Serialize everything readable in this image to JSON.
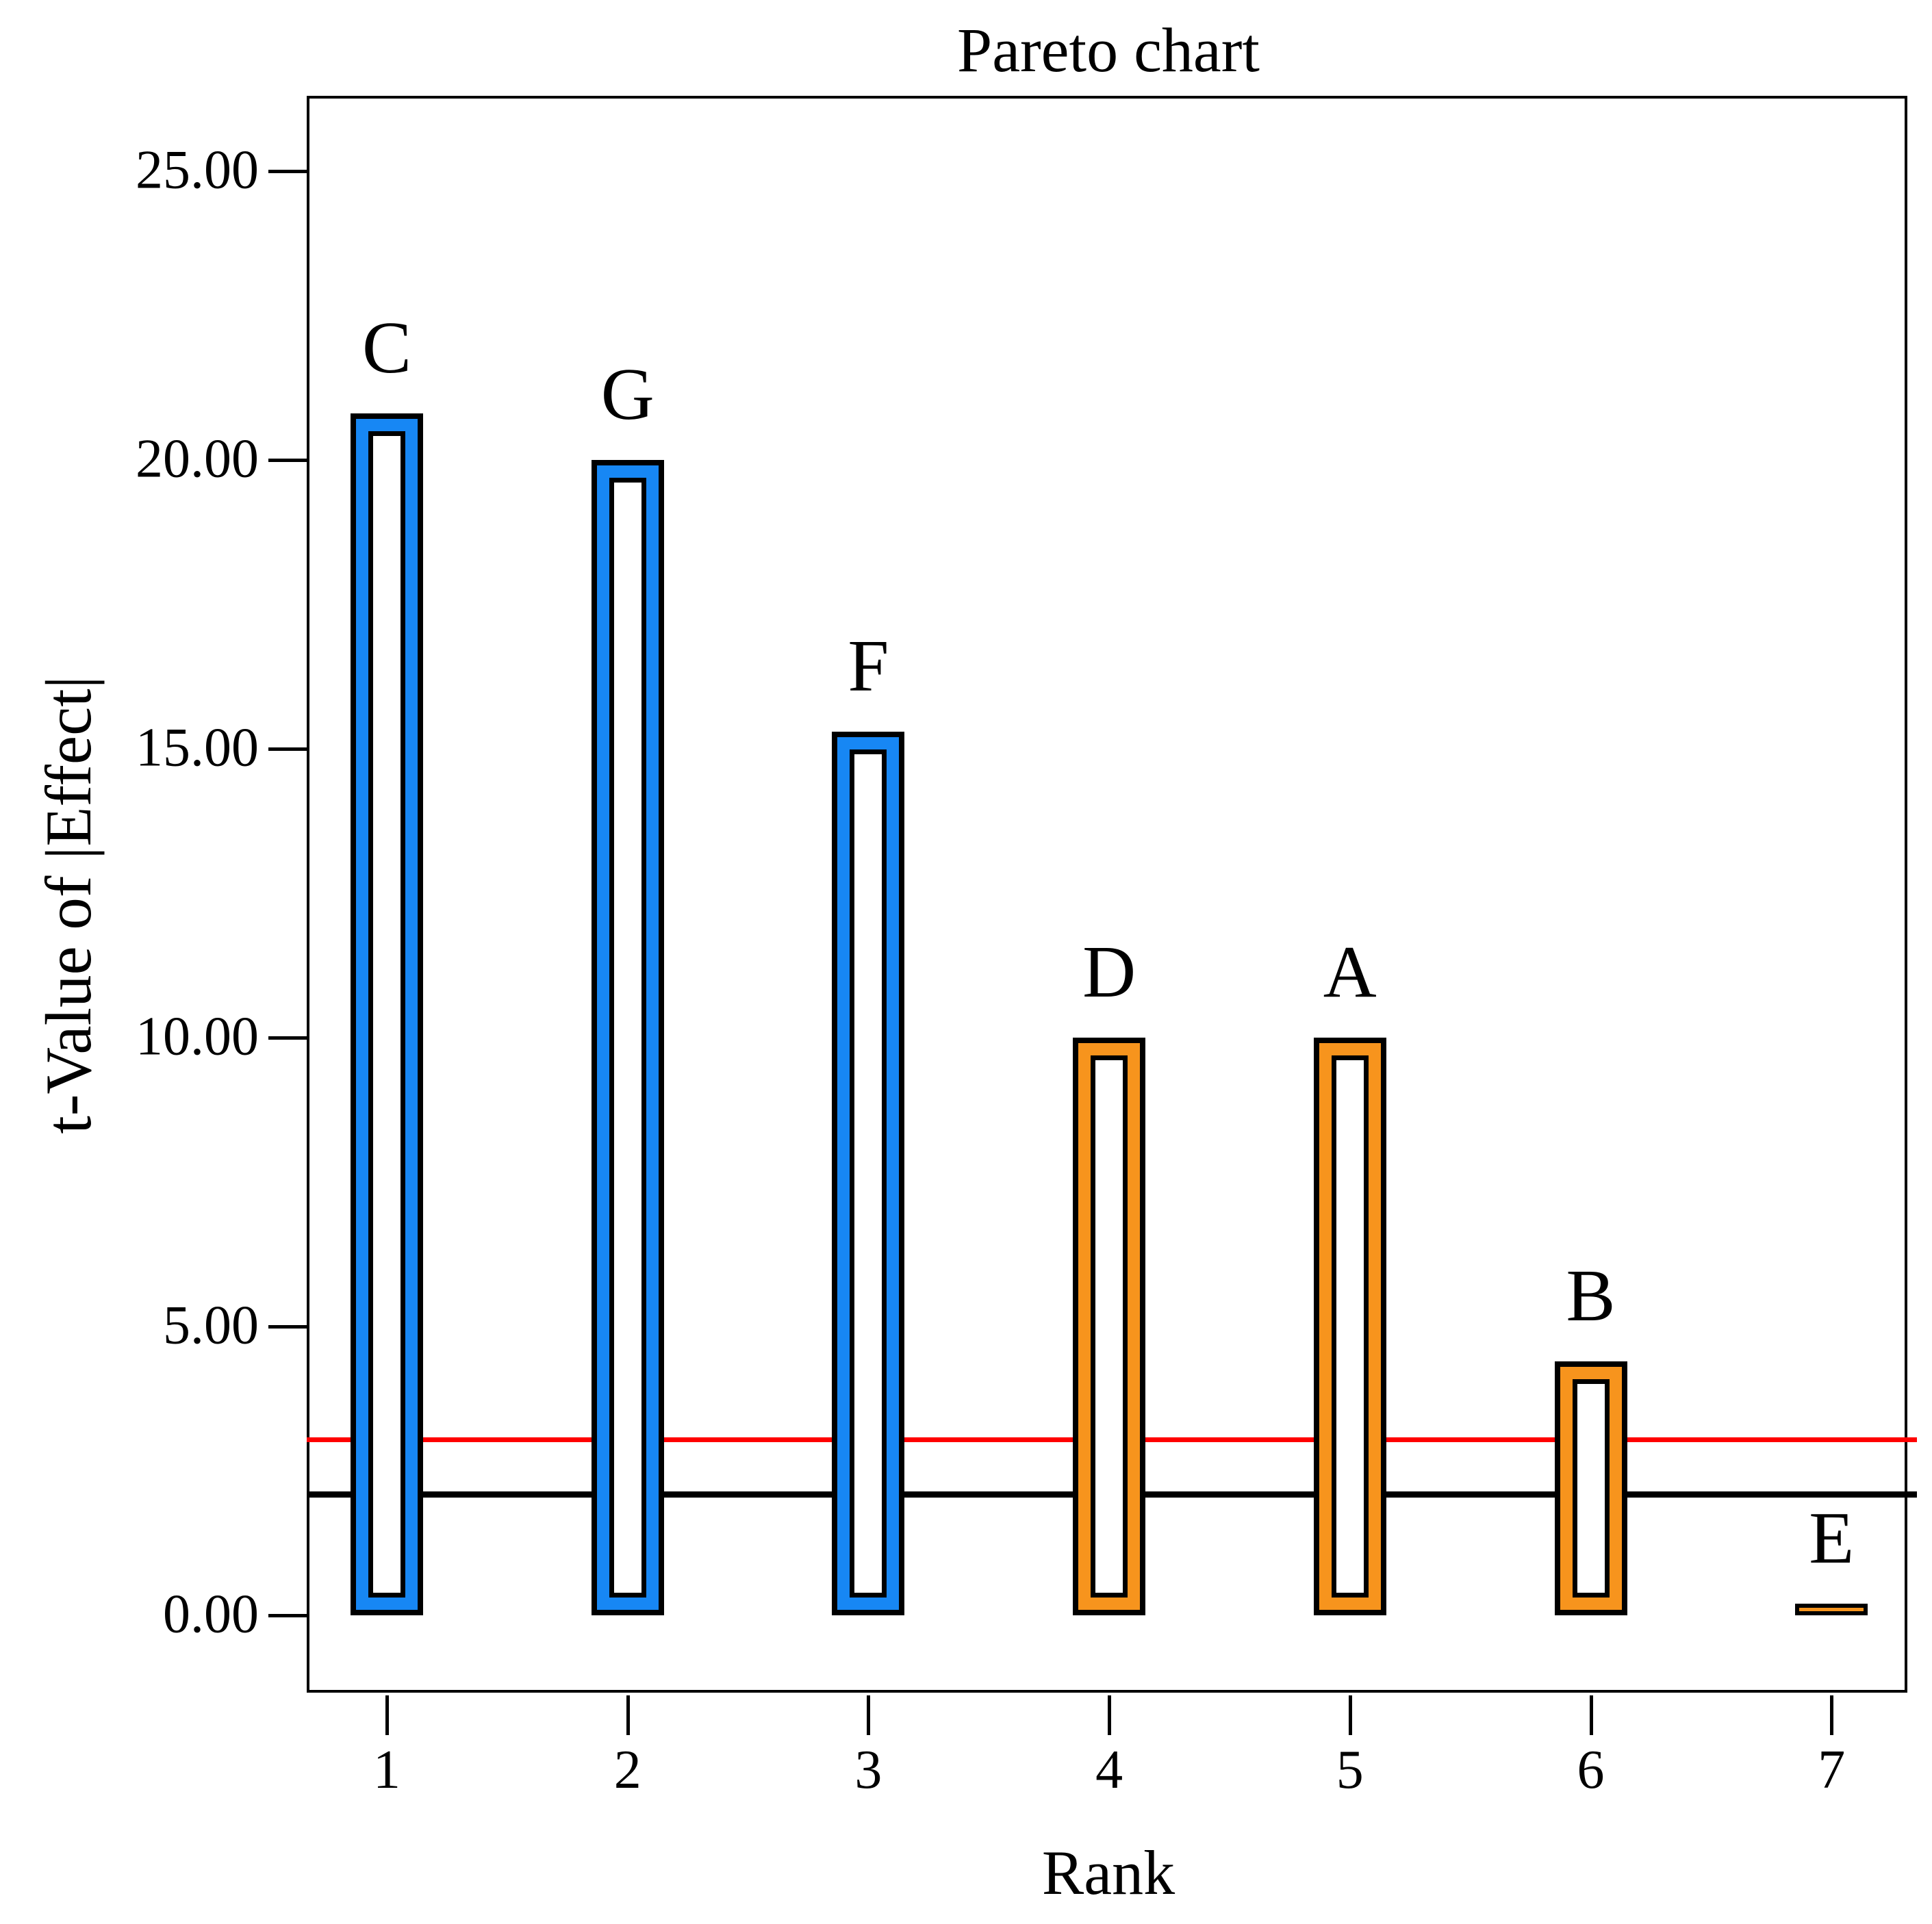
{
  "title": "Pareto chart",
  "y_axis": {
    "label": "t-Value of |Effect|",
    "ticks": [
      "25.00",
      "20.00",
      "15.00",
      "10.00",
      "5.00",
      "0.00"
    ],
    "tick_values": [
      25,
      20,
      15,
      10,
      5,
      0
    ]
  },
  "x_axis": {
    "label": "Rank",
    "ticks": [
      "1",
      "2",
      "3",
      "4",
      "5",
      "6",
      "7"
    ]
  },
  "chart_data": {
    "type": "bar",
    "title": "Pareto chart",
    "xlabel": "Rank",
    "ylabel": "t-Value of |Effect|",
    "categories": [
      1,
      2,
      3,
      4,
      5,
      6,
      7
    ],
    "bar_labels": [
      "C",
      "G",
      "F",
      "D",
      "A",
      "B",
      "E"
    ],
    "values": [
      20.8,
      20.0,
      15.3,
      10.0,
      10.0,
      4.4,
      0.2
    ],
    "bar_color_keys": [
      "blue",
      "blue",
      "blue",
      "orange",
      "orange",
      "orange",
      "orange"
    ],
    "colors": {
      "blue": "#1787F4",
      "orange": "#F7941D",
      "outline": "#000000"
    },
    "bar_style": "hollow-outlined",
    "ylim": [
      -1.4,
      26.3
    ],
    "grid": false,
    "legend": "none",
    "reference_lines": [
      {
        "name": "bonferroni-limit",
        "value": 3.05,
        "color": "#FF0000"
      },
      {
        "name": "t-value-limit",
        "value": 2.11,
        "color": "#000000"
      }
    ]
  }
}
